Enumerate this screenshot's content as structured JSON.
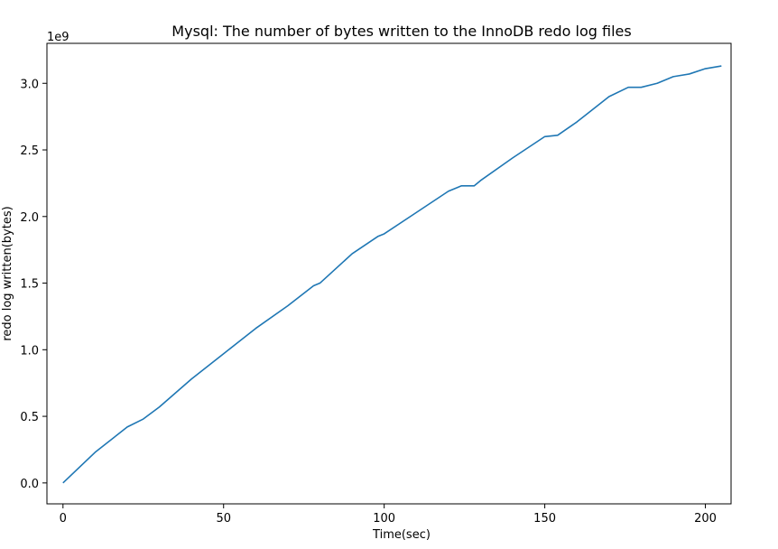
{
  "chart_data": {
    "type": "line",
    "title": "Mysql: The number of bytes written to the InnoDB redo log files",
    "xlabel": "Time(sec)",
    "ylabel": "redo log written(bytes)",
    "y_offset_label": "1e9",
    "xlim": [
      -5,
      208
    ],
    "ylim": [
      -0.157,
      3.3
    ],
    "xticks": [
      0,
      50,
      100,
      150,
      200
    ],
    "yticks": [
      0.0,
      0.5,
      1.0,
      1.5,
      2.0,
      2.5,
      3.0
    ],
    "grid": false,
    "legend": "none",
    "colors": {
      "line": "#1f77b4",
      "axes": "#000000"
    },
    "series": [
      {
        "x": [
          0,
          10,
          20,
          25,
          30,
          40,
          50,
          60,
          70,
          78,
          80,
          90,
          98,
          100,
          110,
          120,
          124,
          128,
          130,
          140,
          150,
          154,
          160,
          170,
          176,
          180,
          185,
          190,
          195,
          200,
          205
        ],
        "y": [
          0.0,
          0.23,
          0.42,
          0.48,
          0.57,
          0.78,
          0.97,
          1.16,
          1.33,
          1.48,
          1.5,
          1.72,
          1.85,
          1.87,
          2.03,
          2.19,
          2.23,
          2.23,
          2.27,
          2.44,
          2.6,
          2.61,
          2.71,
          2.9,
          2.97,
          2.97,
          3.0,
          3.05,
          3.07,
          3.11,
          3.13
        ]
      }
    ]
  }
}
